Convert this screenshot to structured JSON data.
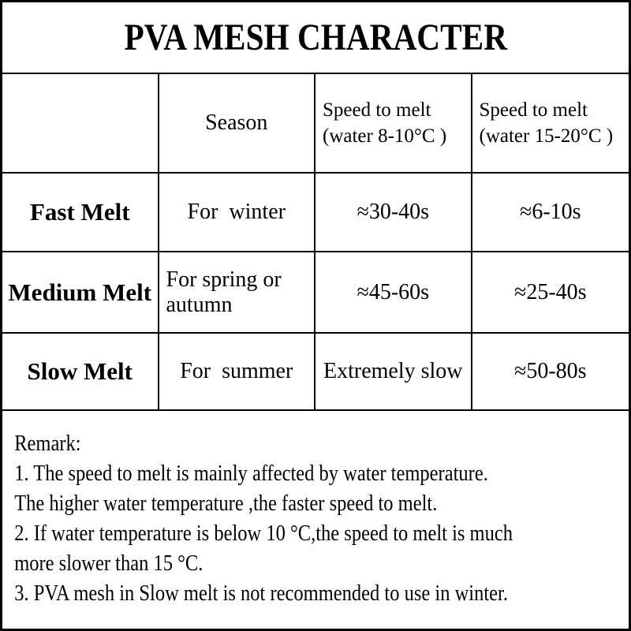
{
  "title": "PVA MESH CHARACTER",
  "colors": {
    "border": "#000000",
    "text": "#000000",
    "fast_bg": "#72904f",
    "medium_bg": "#1576af",
    "slow_bg": "#fc0202",
    "fast_text": "#1d2a12",
    "medium_text": "#0c1e2b",
    "slow_text": "#570e0c"
  },
  "table": {
    "columns": {
      "row_header": "",
      "season": "Season",
      "speed_cold": "Speed to melt\n(water 8-10°C )",
      "speed_warm": "Speed to melt\n(water 15-20°C )"
    },
    "rows": [
      {
        "label": "Fast Melt",
        "season": "For  winter",
        "speed_cold": "≈30-40s",
        "speed_warm": "≈6-10s"
      },
      {
        "label": "Medium Melt",
        "season": "For spring or\nautumn",
        "speed_cold": "≈45-60s",
        "speed_warm": "≈25-40s"
      },
      {
        "label": "Slow Melt",
        "season": "For  summer",
        "speed_cold": "Extremely slow",
        "speed_warm": "≈50-80s"
      }
    ]
  },
  "remark": {
    "heading": "Remark:",
    "lines": [
      "1. The speed to melt is mainly affected by water temperature.",
      "The higher water temperature ,the faster speed to melt.",
      "2. If water temperature is below 10 °C,the speed to melt is much",
      "more slower than 15 °C.",
      "3. PVA mesh in Slow melt is not recommended to use in winter."
    ]
  }
}
